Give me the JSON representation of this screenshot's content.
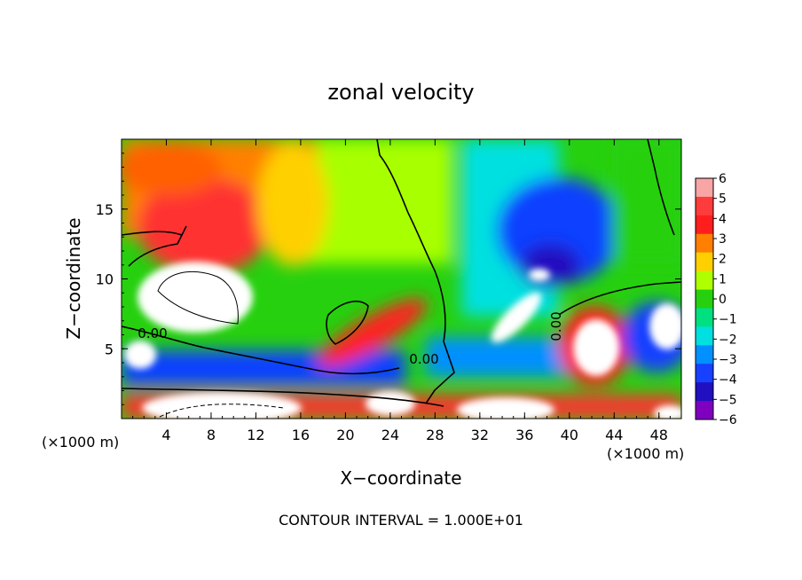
{
  "chart_data": {
    "type": "heatmap",
    "title": "zonal velocity",
    "xlabel": "X−coordinate",
    "ylabel": "Z−coordinate",
    "x_unit_left": "(×1000 m)",
    "x_unit_right": "(×1000 m)",
    "footer": "CONTOUR INTERVAL = 1.000E+01",
    "xlim": [
      0,
      50
    ],
    "ylim": [
      0,
      20
    ],
    "x_ticks": [
      4,
      8,
      12,
      16,
      20,
      24,
      28,
      32,
      36,
      40,
      44,
      48
    ],
    "y_ticks": [
      5,
      10,
      15
    ],
    "colorbar": {
      "labels": [
        "6",
        "5",
        "4",
        "3",
        "2",
        "1",
        "0",
        "−1",
        "−2",
        "−3",
        "−4",
        "−5",
        "−6"
      ],
      "colors": [
        "#f8a5a5",
        "#ff3c3c",
        "#ff1e1e",
        "#ff8000",
        "#ffd000",
        "#b0ff00",
        "#26d00f",
        "#00e080",
        "#00e0e0",
        "#0090ff",
        "#1840ff",
        "#2010c0",
        "#8000c0"
      ]
    },
    "contour_labels": [
      "0.00",
      "0.00",
      "0.00"
    ]
  }
}
